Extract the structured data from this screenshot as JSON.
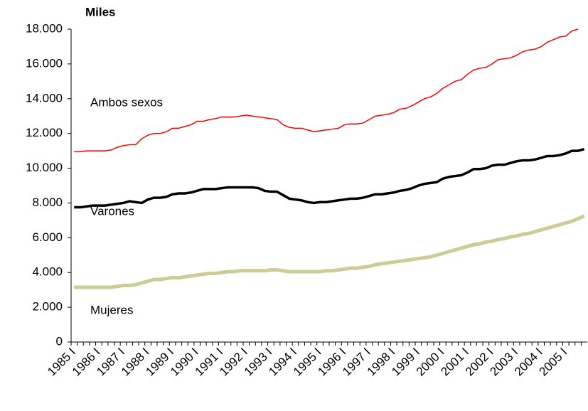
{
  "chart_data": {
    "type": "line",
    "unit_label": "Miles",
    "categories": [
      "1985 I",
      null,
      null,
      null,
      "1986 I",
      null,
      null,
      null,
      "1987 I",
      null,
      null,
      null,
      "1988 I",
      null,
      null,
      null,
      "1989 I",
      null,
      null,
      null,
      "1990 I",
      null,
      null,
      null,
      "1991 I",
      null,
      null,
      null,
      "1992 I",
      null,
      null,
      null,
      "1993 I",
      null,
      null,
      null,
      "1994 I",
      null,
      null,
      null,
      "1995 I",
      null,
      null,
      null,
      "1996 I",
      null,
      null,
      null,
      "1997 I",
      null,
      null,
      null,
      "1998 I",
      null,
      null,
      null,
      "1999 I",
      null,
      null,
      null,
      "2000 I",
      null,
      null,
      null,
      "2001 I",
      null,
      null,
      null,
      "2002 I",
      null,
      null,
      null,
      "2003 I",
      null,
      null,
      null,
      "2004 I",
      null,
      null,
      null,
      "2005 I",
      null,
      null,
      null
    ],
    "series": [
      {
        "name": "Ambos sexos",
        "color": "#ff0000",
        "width": 1.5,
        "values": [
          10950,
          10950,
          11000,
          11000,
          11000,
          11000,
          11050,
          11200,
          11300,
          11350,
          11350,
          11700,
          11900,
          12000,
          12000,
          12100,
          12300,
          12300,
          12400,
          12500,
          12700,
          12700,
          12800,
          12850,
          12950,
          12950,
          12950,
          13000,
          13050,
          13000,
          12950,
          12900,
          12850,
          12800,
          12500,
          12350,
          12300,
          12300,
          12200,
          12100,
          12150,
          12200,
          12250,
          12300,
          12500,
          12550,
          12550,
          12600,
          12800,
          13000,
          13050,
          13100,
          13200,
          13400,
          13450,
          13600,
          13800,
          14000,
          14100,
          14300,
          14600,
          14800,
          15000,
          15100,
          15400,
          15650,
          15750,
          15800,
          16000,
          16250,
          16300,
          16350,
          16500,
          16700,
          16800,
          16850,
          17000,
          17250,
          17400,
          17550,
          17600,
          17900,
          18000,
          null
        ]
      },
      {
        "name": "Varones",
        "color": "#000000",
        "width": 3.5,
        "values": [
          7750,
          7750,
          7800,
          7850,
          7850,
          7850,
          7900,
          7950,
          8000,
          8100,
          8050,
          8000,
          8200,
          8300,
          8300,
          8350,
          8500,
          8550,
          8550,
          8600,
          8700,
          8800,
          8800,
          8800,
          8850,
          8900,
          8900,
          8900,
          8900,
          8900,
          8850,
          8700,
          8650,
          8650,
          8450,
          8250,
          8200,
          8150,
          8050,
          8000,
          8050,
          8050,
          8100,
          8150,
          8200,
          8250,
          8250,
          8300,
          8400,
          8500,
          8500,
          8550,
          8600,
          8700,
          8750,
          8850,
          9000,
          9100,
          9150,
          9200,
          9400,
          9500,
          9550,
          9600,
          9750,
          9950,
          9950,
          10000,
          10150,
          10200,
          10200,
          10300,
          10400,
          10450,
          10450,
          10500,
          10600,
          10700,
          10700,
          10750,
          10850,
          11000,
          11000,
          11100
        ]
      },
      {
        "name": "Mujeres",
        "color": "#cccc99",
        "width": 5,
        "values": [
          3150,
          3150,
          3150,
          3150,
          3150,
          3150,
          3150,
          3200,
          3250,
          3250,
          3300,
          3400,
          3500,
          3600,
          3600,
          3650,
          3700,
          3700,
          3750,
          3800,
          3850,
          3900,
          3950,
          3950,
          4000,
          4050,
          4050,
          4100,
          4100,
          4100,
          4100,
          4100,
          4150,
          4150,
          4100,
          4050,
          4050,
          4050,
          4050,
          4050,
          4050,
          4100,
          4100,
          4150,
          4200,
          4250,
          4250,
          4300,
          4350,
          4450,
          4500,
          4550,
          4600,
          4650,
          4700,
          4750,
          4800,
          4850,
          4900,
          5000,
          5100,
          5200,
          5300,
          5400,
          5500,
          5600,
          5650,
          5750,
          5800,
          5900,
          5950,
          6050,
          6100,
          6200,
          6250,
          6350,
          6450,
          6550,
          6650,
          6750,
          6850,
          6950,
          7100,
          7250
        ]
      }
    ],
    "ylim": [
      0,
      18000
    ],
    "yticks": [
      0,
      {
        "value": 2000,
        "label": "2.000"
      },
      {
        "value": 4000,
        "label": "4.000"
      },
      {
        "value": 6000,
        "label": "6.000"
      },
      {
        "value": 8000,
        "label": "8.000"
      },
      {
        "value": 10000,
        "label": "10.000"
      },
      {
        "value": 12000,
        "label": "12.000"
      },
      {
        "value": 14000,
        "label": "14.000"
      },
      {
        "value": 16000,
        "label": "16.000"
      },
      {
        "value": 18000,
        "label": "18.000"
      }
    ],
    "grid": false
  }
}
